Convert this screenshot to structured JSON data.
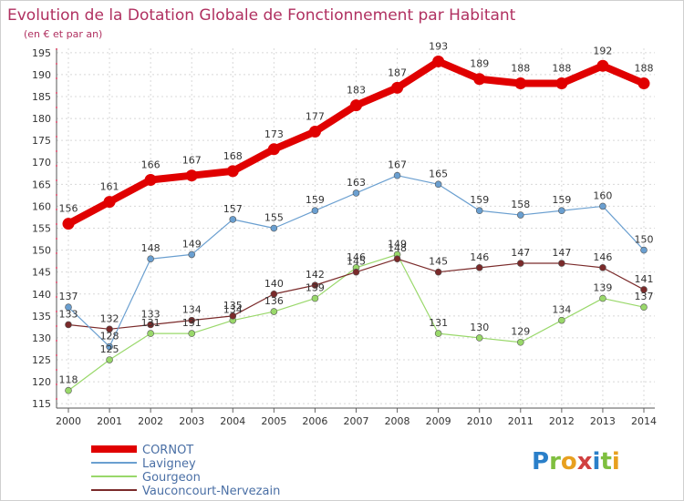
{
  "brand": {
    "name": "Proxiti",
    "letters": [
      "P",
      "r",
      "o",
      "x",
      "i",
      "t",
      "i"
    ],
    "letter_colors": [
      "#2a7fc9",
      "#7fbf3f",
      "#e8a020",
      "#d04040",
      "#2a7fc9",
      "#7fbf3f",
      "#e8a020"
    ]
  },
  "chart_data": {
    "type": "line",
    "title": "Evolution de la Dotation Globale de Fonctionnement par Habitant",
    "subtitle": "(en € et par an)",
    "xlabel": "",
    "ylabel": "",
    "x": [
      "2000",
      "2001",
      "2002",
      "2003",
      "2004",
      "2005",
      "2006",
      "2007",
      "2008",
      "2009",
      "2010",
      "2011",
      "2012",
      "2013",
      "2014"
    ],
    "ylim": [
      114,
      196
    ],
    "yticks": [
      115,
      120,
      125,
      130,
      135,
      140,
      145,
      150,
      155,
      160,
      165,
      170,
      175,
      180,
      185,
      190,
      195
    ],
    "grid": true,
    "legend_position": "bottom-left",
    "series": [
      {
        "name": "CORNOT",
        "color": "#e00000",
        "values": [
          156,
          161,
          166,
          167,
          168,
          173,
          177,
          183,
          187,
          193,
          189,
          188,
          188,
          192,
          188
        ]
      },
      {
        "name": "Lavigney",
        "color": "#6a9fd0",
        "values": [
          137,
          128,
          148,
          149,
          157,
          155,
          159,
          163,
          167,
          165,
          159,
          158,
          159,
          160,
          150
        ]
      },
      {
        "name": "Gourgeon",
        "color": "#99d86a",
        "values": [
          118,
          125,
          131,
          131,
          134,
          136,
          139,
          146,
          149,
          131,
          130,
          129,
          134,
          139,
          137
        ]
      },
      {
        "name": "Vauconcourt-Nervezain",
        "color": "#7a2a2a",
        "values": [
          133,
          132,
          133,
          134,
          135,
          140,
          142,
          145,
          148,
          145,
          146,
          147,
          147,
          146,
          141
        ]
      }
    ]
  }
}
